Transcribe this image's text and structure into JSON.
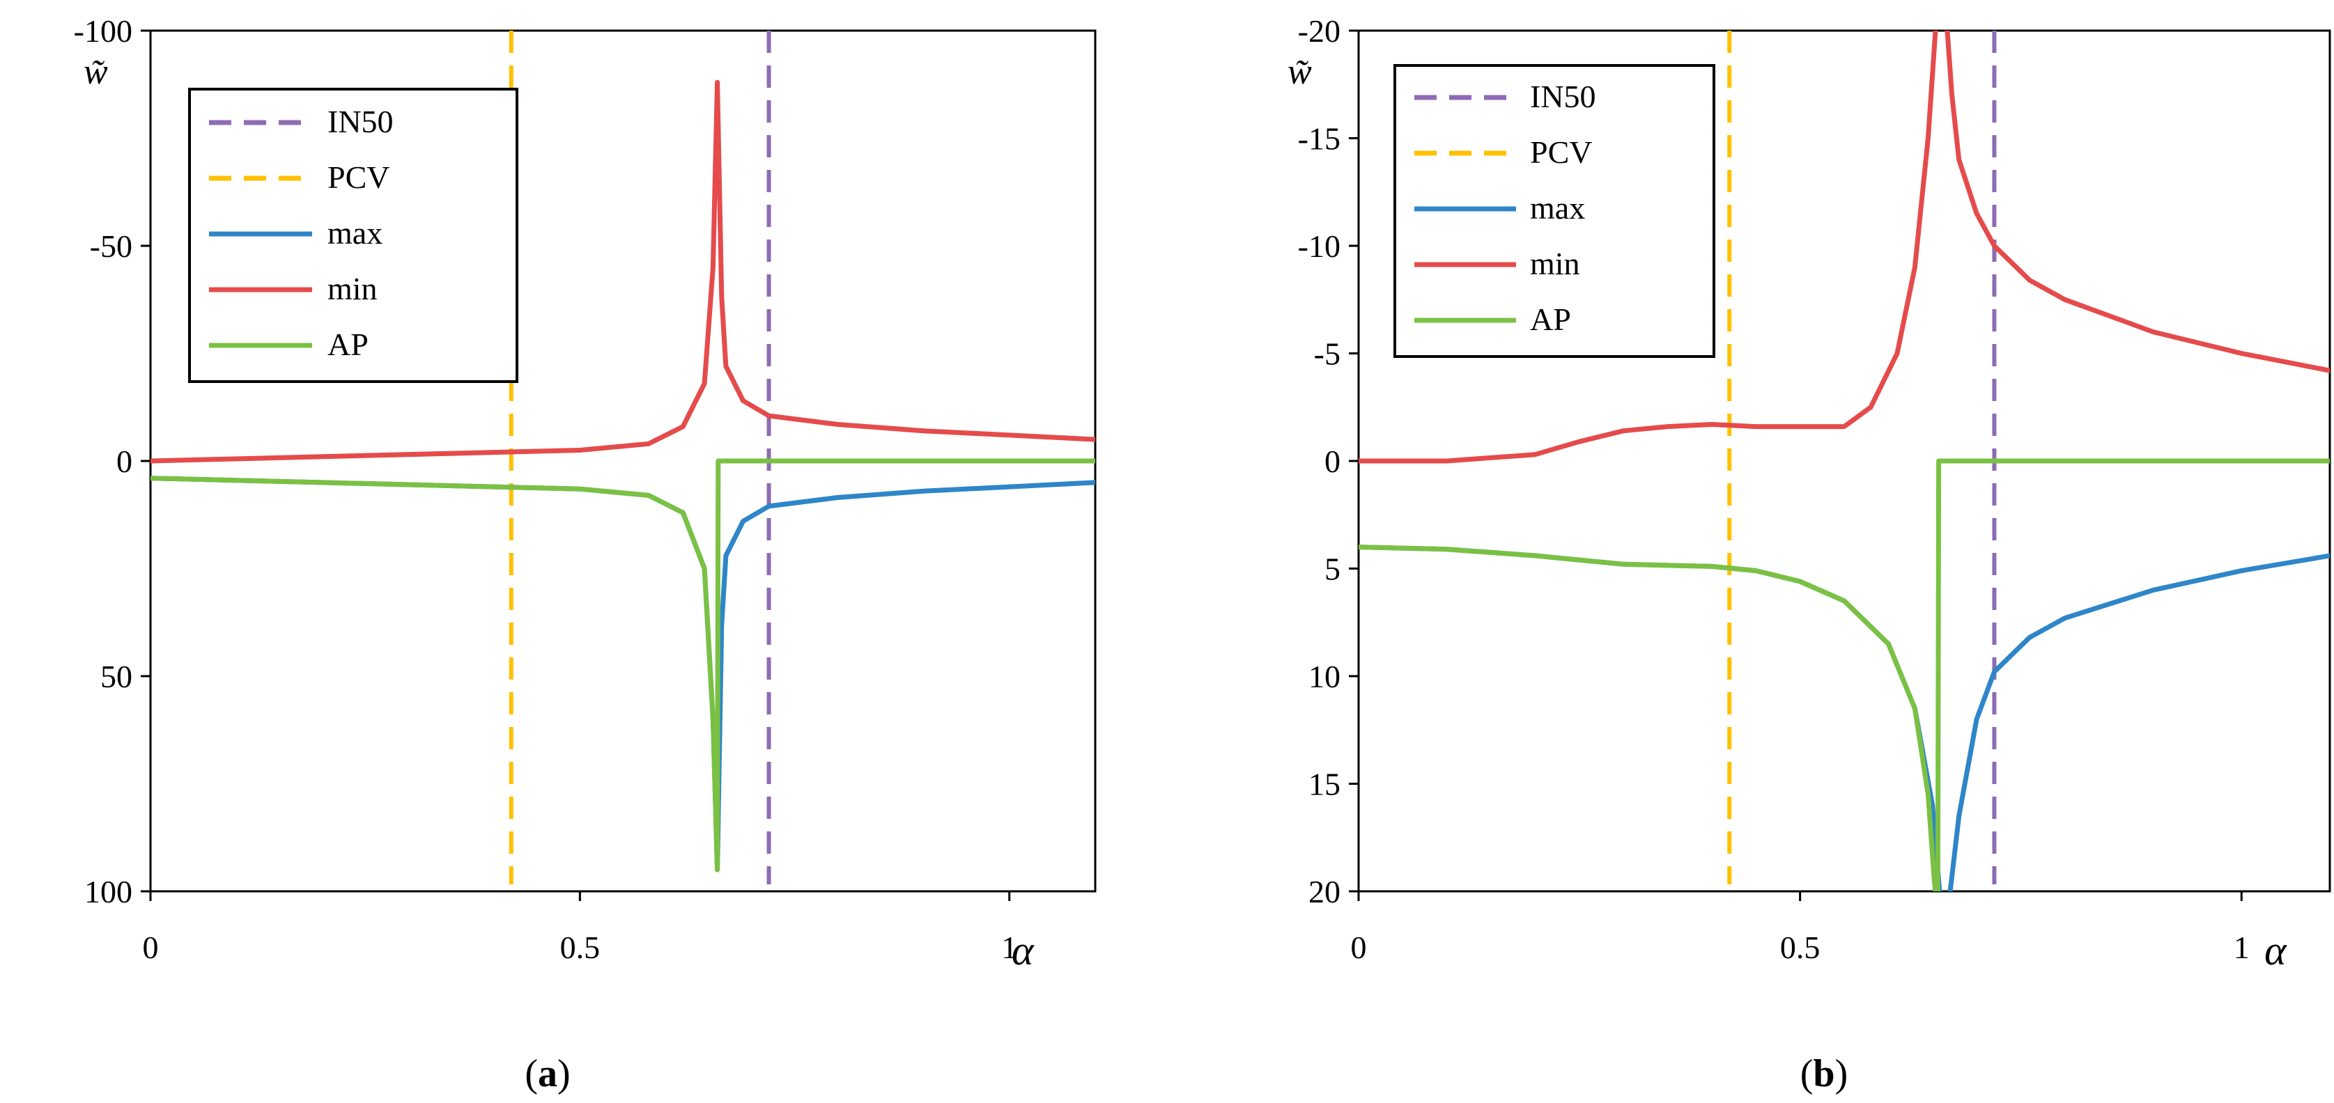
{
  "colors": {
    "IN50": "#8e6bb5",
    "PCV": "#ffc000",
    "max": "#2e86c8",
    "min": "#e54b4b",
    "AP": "#7ac143"
  },
  "chart_data": [
    {
      "type": "line",
      "panel": "a",
      "caption_label": "a",
      "ylabel": "w̃",
      "xlabel": "α",
      "xlim": [
        0,
        1.1
      ],
      "ylim": [
        100,
        -100
      ],
      "xticks": [
        0,
        0.5,
        1
      ],
      "xtick_labels": [
        "0",
        "0.5",
        "1"
      ],
      "yticks": [
        -100,
        -50,
        0,
        50,
        100
      ],
      "ytick_labels": [
        "-100",
        "-50",
        "0",
        "50",
        "100"
      ],
      "legend": [
        "IN50",
        "PCV",
        "max",
        "min",
        "AP"
      ],
      "vlines": [
        {
          "name": "IN50",
          "x": 0.72,
          "style": "dashed"
        },
        {
          "name": "PCV",
          "x": 0.42,
          "style": "dashed"
        }
      ],
      "series": [
        {
          "name": "max",
          "x": [
            0,
            0.2,
            0.4,
            0.5,
            0.58,
            0.62,
            0.645,
            0.655,
            0.66,
            0.665,
            0.67,
            0.69,
            0.72,
            0.8,
            0.9,
            1.0,
            1.1
          ],
          "y": [
            4,
            5,
            6,
            6.5,
            8,
            12,
            25,
            60,
            95,
            38,
            22,
            14,
            10.5,
            8.5,
            7,
            6,
            5
          ]
        },
        {
          "name": "min",
          "x": [
            0,
            0.2,
            0.4,
            0.5,
            0.58,
            0.62,
            0.645,
            0.655,
            0.66,
            0.665,
            0.67,
            0.69,
            0.72,
            0.8,
            0.9,
            1.0,
            1.1
          ],
          "y": [
            0,
            -1,
            -2,
            -2.5,
            -4,
            -8,
            -18,
            -45,
            -88,
            -38,
            -22,
            -14,
            -10.5,
            -8.5,
            -7,
            -6,
            -5
          ]
        },
        {
          "name": "AP",
          "x": [
            0,
            0.2,
            0.4,
            0.5,
            0.58,
            0.62,
            0.645,
            0.655,
            0.66,
            0.661,
            0.8,
            1.1
          ],
          "y": [
            4,
            5,
            6,
            6.5,
            8,
            12,
            25,
            60,
            95,
            0,
            0,
            0
          ]
        }
      ]
    },
    {
      "type": "line",
      "panel": "b",
      "caption_label": "b",
      "ylabel": "w̃",
      "xlabel": "α",
      "xlim": [
        0,
        1.1
      ],
      "ylim": [
        20,
        -20
      ],
      "xticks": [
        0,
        0.5,
        1
      ],
      "xtick_labels": [
        "0",
        "0.5",
        "1"
      ],
      "yticks": [
        -20,
        -15,
        -10,
        -5,
        0,
        5,
        10,
        15,
        20
      ],
      "ytick_labels": [
        "-20",
        "-15",
        "-10",
        "-5",
        "0",
        "5",
        "10",
        "15",
        "20"
      ],
      "legend": [
        "IN50",
        "PCV",
        "max",
        "min",
        "AP"
      ],
      "vlines": [
        {
          "name": "IN50",
          "x": 0.72,
          "style": "dashed"
        },
        {
          "name": "PCV",
          "x": 0.42,
          "style": "dashed"
        }
      ],
      "series": [
        {
          "name": "max",
          "x": [
            0,
            0.1,
            0.2,
            0.3,
            0.4,
            0.45,
            0.5,
            0.55,
            0.6,
            0.63,
            0.65,
            0.658,
            0.662,
            0.67,
            0.68,
            0.7,
            0.72,
            0.76,
            0.8,
            0.9,
            1.0,
            1.1
          ],
          "y": [
            4,
            4.1,
            4.4,
            4.8,
            4.9,
            5.1,
            5.6,
            6.5,
            8.5,
            11.5,
            16,
            20,
            21,
            20,
            16.5,
            12,
            9.8,
            8.2,
            7.3,
            6,
            5.1,
            4.4
          ]
        },
        {
          "name": "min",
          "x": [
            0,
            0.1,
            0.2,
            0.25,
            0.3,
            0.35,
            0.4,
            0.45,
            0.5,
            0.55,
            0.58,
            0.61,
            0.63,
            0.645,
            0.655,
            0.66,
            0.665,
            0.672,
            0.68,
            0.7,
            0.72,
            0.76,
            0.8,
            0.9,
            1.0,
            1.1
          ],
          "y": [
            0,
            0,
            -0.3,
            -0.9,
            -1.4,
            -1.6,
            -1.7,
            -1.6,
            -1.6,
            -1.6,
            -2.5,
            -5,
            -9,
            -15,
            -21,
            -21,
            -21,
            -17,
            -14,
            -11.5,
            -10,
            -8.4,
            -7.5,
            -6,
            -5,
            -4.2
          ]
        },
        {
          "name": "AP",
          "x": [
            0,
            0.1,
            0.2,
            0.3,
            0.4,
            0.45,
            0.5,
            0.55,
            0.6,
            0.63,
            0.645,
            0.652,
            0.656,
            0.657,
            0.8,
            1.1
          ],
          "y": [
            4,
            4.1,
            4.4,
            4.8,
            4.9,
            5.1,
            5.6,
            6.5,
            8.5,
            11.5,
            15.5,
            19.5,
            21,
            0,
            0,
            0
          ]
        }
      ]
    }
  ]
}
